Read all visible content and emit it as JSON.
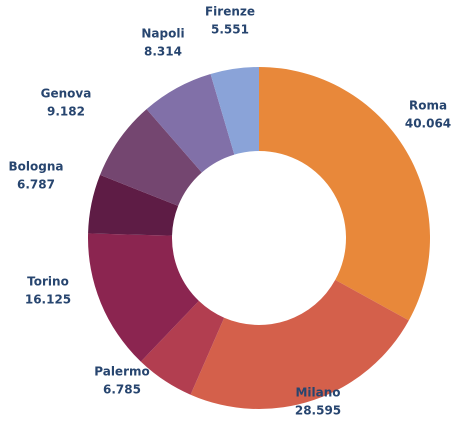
{
  "chart_data": {
    "type": "donut",
    "categories": [
      "Roma",
      "Milano",
      "Palermo",
      "Torino",
      "Bologna",
      "Genova",
      "Napoli",
      "Firenze"
    ],
    "values": [
      40064,
      28595,
      6785,
      16125,
      6787,
      9182,
      8314,
      5551
    ],
    "value_labels": [
      "40.064",
      "28.595",
      "6.785",
      "16.125",
      "6.787",
      "9.182",
      "8.314",
      "5.551"
    ],
    "colors": [
      "#e8883a",
      "#d4604b",
      "#b23e50",
      "#8b2550",
      "#5e1c45",
      "#744670",
      "#8170a8",
      "#8aa3d8"
    ]
  }
}
